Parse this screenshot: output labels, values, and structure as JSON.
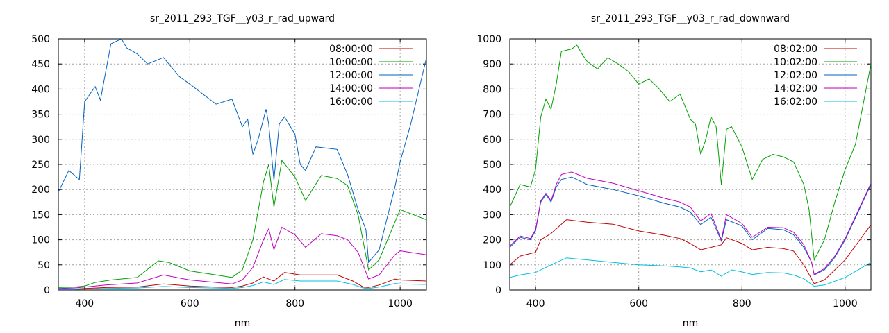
{
  "chart_data": [
    {
      "type": "line",
      "title": "sr_2011_293_TGF__y03_r_rad_upward",
      "xlabel": "nm",
      "ylabel": "",
      "xlim": [
        350,
        1050
      ],
      "ylim": [
        0,
        500
      ],
      "xticks": [
        400,
        600,
        800,
        1000
      ],
      "yticks": [
        0,
        50,
        100,
        150,
        200,
        250,
        300,
        350,
        400,
        450,
        500
      ],
      "grid": true,
      "legend_position": "top-right",
      "series": [
        {
          "name": "08:00:00",
          "color": "#c00000",
          "x": [
            350,
            380,
            400,
            440,
            500,
            550,
            600,
            650,
            680,
            700,
            720,
            740,
            760,
            780,
            810,
            840,
            880,
            910,
            930,
            940,
            960,
            990,
            1000,
            1050
          ],
          "y": [
            2,
            2,
            3,
            5,
            6,
            12,
            8,
            6,
            5,
            8,
            14,
            26,
            18,
            35,
            30,
            30,
            30,
            18,
            6,
            5,
            10,
            22,
            20,
            18
          ]
        },
        {
          "name": "10:00:00",
          "color": "#00a000",
          "x": [
            350,
            380,
            400,
            420,
            450,
            500,
            540,
            560,
            600,
            650,
            680,
            700,
            720,
            740,
            750,
            760,
            775,
            800,
            820,
            850,
            880,
            900,
            920,
            940,
            960,
            1000,
            1050
          ],
          "y": [
            5,
            6,
            8,
            15,
            20,
            25,
            58,
            55,
            38,
            30,
            25,
            40,
            100,
            215,
            250,
            165,
            258,
            225,
            178,
            228,
            222,
            208,
            150,
            40,
            60,
            160,
            140
          ]
        },
        {
          "name": "12:00:00",
          "color": "#0060c0",
          "x": [
            350,
            370,
            390,
            400,
            420,
            430,
            450,
            470,
            480,
            500,
            520,
            550,
            580,
            600,
            650,
            680,
            700,
            710,
            720,
            730,
            745,
            750,
            760,
            770,
            780,
            800,
            810,
            820,
            840,
            880,
            900,
            920,
            935,
            940,
            960,
            990,
            1000,
            1020,
            1050
          ],
          "y": [
            195,
            238,
            220,
            375,
            405,
            378,
            490,
            500,
            482,
            470,
            450,
            463,
            425,
            410,
            370,
            380,
            325,
            340,
            270,
            300,
            360,
            330,
            218,
            330,
            345,
            310,
            250,
            238,
            285,
            280,
            230,
            160,
            120,
            55,
            80,
            205,
            255,
            330,
            462
          ]
        },
        {
          "name": "14:00:00",
          "color": "#c000c0",
          "x": [
            350,
            380,
            400,
            440,
            500,
            550,
            600,
            650,
            680,
            700,
            720,
            740,
            750,
            760,
            775,
            800,
            820,
            850,
            880,
            900,
            920,
            940,
            960,
            990,
            1000,
            1050
          ],
          "y": [
            3,
            4,
            6,
            10,
            14,
            30,
            20,
            15,
            12,
            20,
            45,
            100,
            122,
            80,
            125,
            110,
            85,
            112,
            108,
            100,
            75,
            22,
            30,
            70,
            78,
            70
          ]
        },
        {
          "name": "16:00:00",
          "color": "#00c0e0",
          "x": [
            350,
            380,
            400,
            440,
            500,
            550,
            600,
            650,
            680,
            700,
            720,
            740,
            760,
            780,
            810,
            840,
            880,
            910,
            930,
            940,
            960,
            990,
            1000,
            1050
          ],
          "y": [
            1,
            1,
            2,
            3,
            4,
            7,
            5,
            4,
            3,
            5,
            9,
            16,
            11,
            21,
            18,
            18,
            18,
            11,
            4,
            3,
            6,
            13,
            12,
            11
          ]
        }
      ]
    },
    {
      "type": "line",
      "title": "sr_2011_293_TGF__y03_r_rad_downward",
      "xlabel": "nm",
      "ylabel": "",
      "xlim": [
        350,
        1050
      ],
      "ylim": [
        0,
        1000
      ],
      "xticks": [
        400,
        600,
        800,
        1000
      ],
      "yticks": [
        0,
        100,
        200,
        300,
        400,
        500,
        600,
        700,
        800,
        900,
        1000
      ],
      "grid": true,
      "legend_position": "top-right",
      "series": [
        {
          "name": "08:02:00",
          "color": "#c00000",
          "x": [
            350,
            370,
            400,
            410,
            430,
            460,
            500,
            550,
            600,
            650,
            680,
            700,
            720,
            740,
            760,
            770,
            800,
            820,
            850,
            880,
            900,
            920,
            940,
            960,
            1000,
            1050
          ],
          "y": [
            100,
            135,
            150,
            200,
            225,
            280,
            270,
            262,
            235,
            218,
            205,
            185,
            160,
            170,
            180,
            208,
            185,
            160,
            170,
            165,
            155,
            100,
            25,
            40,
            120,
            260
          ]
        },
        {
          "name": "10:02:00",
          "color": "#00a000",
          "x": [
            350,
            370,
            390,
            400,
            410,
            420,
            430,
            440,
            450,
            470,
            480,
            490,
            500,
            520,
            540,
            560,
            580,
            600,
            620,
            640,
            660,
            680,
            700,
            710,
            720,
            730,
            740,
            750,
            760,
            770,
            780,
            800,
            820,
            840,
            860,
            880,
            900,
            920,
            930,
            940,
            960,
            980,
            1000,
            1020,
            1050
          ],
          "y": [
            330,
            420,
            410,
            480,
            690,
            760,
            720,
            820,
            950,
            960,
            975,
            940,
            910,
            880,
            925,
            900,
            870,
            820,
            840,
            800,
            750,
            780,
            680,
            660,
            540,
            600,
            690,
            650,
            420,
            640,
            650,
            570,
            440,
            520,
            540,
            530,
            510,
            420,
            320,
            120,
            200,
            350,
            480,
            580,
            900
          ]
        },
        {
          "name": "12:02:00",
          "color": "#0060c0",
          "x": [
            350,
            370,
            390,
            400,
            410,
            420,
            430,
            440,
            450,
            470,
            500,
            550,
            600,
            650,
            680,
            700,
            720,
            740,
            760,
            770,
            800,
            820,
            850,
            880,
            900,
            920,
            935,
            940,
            960,
            980,
            1000,
            1050
          ],
          "y": [
            170,
            210,
            200,
            235,
            350,
            380,
            350,
            410,
            440,
            450,
            420,
            400,
            375,
            345,
            330,
            310,
            260,
            290,
            195,
            280,
            255,
            200,
            245,
            240,
            220,
            170,
            110,
            60,
            80,
            130,
            200,
            420
          ]
        },
        {
          "name": "14:02:00",
          "color": "#c000c0",
          "x": [
            350,
            370,
            390,
            400,
            410,
            420,
            430,
            440,
            450,
            470,
            500,
            550,
            600,
            650,
            680,
            700,
            720,
            740,
            760,
            770,
            800,
            820,
            850,
            880,
            900,
            920,
            935,
            940,
            960,
            980,
            1000,
            1050
          ],
          "y": [
            175,
            215,
            205,
            240,
            355,
            385,
            355,
            420,
            460,
            470,
            445,
            425,
            395,
            365,
            350,
            330,
            275,
            305,
            200,
            300,
            265,
            210,
            250,
            248,
            230,
            180,
            110,
            62,
            85,
            135,
            205,
            425
          ]
        },
        {
          "name": "16:02:00",
          "color": "#00c0e0",
          "x": [
            350,
            370,
            400,
            430,
            460,
            500,
            550,
            600,
            650,
            680,
            700,
            720,
            740,
            760,
            780,
            800,
            820,
            850,
            880,
            900,
            920,
            940,
            960,
            1000,
            1050
          ],
          "y": [
            50,
            60,
            70,
            100,
            128,
            120,
            110,
            100,
            96,
            92,
            88,
            72,
            80,
            55,
            80,
            72,
            62,
            70,
            68,
            60,
            45,
            15,
            20,
            50,
            110
          ]
        }
      ]
    }
  ]
}
